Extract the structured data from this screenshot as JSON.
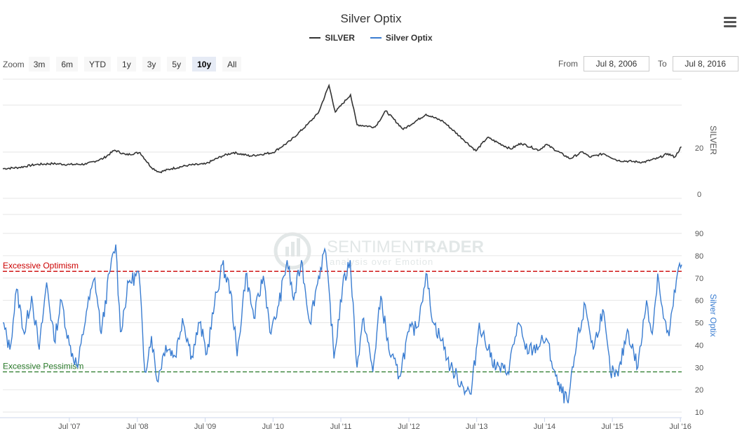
{
  "title": "Silver Optix",
  "legend": [
    {
      "name": "SILVER",
      "color": "#333333"
    },
    {
      "name": "Silver Optix",
      "color": "#3a7dd1"
    }
  ],
  "menu_icon": "hamburger-menu-icon",
  "zoom": {
    "label": "Zoom",
    "buttons": [
      "3m",
      "6m",
      "YTD",
      "1y",
      "3y",
      "5y",
      "10y",
      "All"
    ],
    "active": "10y"
  },
  "range": {
    "from_label": "From",
    "from_value": "Jul 8, 2006",
    "to_label": "To",
    "to_value": "Jul 8, 2016"
  },
  "watermark": {
    "brand_light": "SENTIMEN",
    "brand_bold": "TRADER",
    "tagline": "analysis over Emotion"
  },
  "chart_data": {
    "type": "line",
    "x_ticks": [
      "Jul '07",
      "Jul '08",
      "Jul '09",
      "Jul '10",
      "Jul '11",
      "Jul '12",
      "Jul '13",
      "Jul '14",
      "Jul '15",
      "Jul '16"
    ],
    "panels": [
      {
        "series": "SILVER",
        "color": "#333333",
        "yaxis_title": "SILVER",
        "ylim": [
          0,
          60
        ],
        "y_ticks": [
          "0",
          "20"
        ],
        "points": [
          [
            "2006-07-08",
            11.0
          ],
          [
            "2006-10-01",
            11.5
          ],
          [
            "2007-01-01",
            12.8
          ],
          [
            "2007-04-01",
            13.2
          ],
          [
            "2007-07-01",
            12.8
          ],
          [
            "2007-10-01",
            13.0
          ],
          [
            "2008-01-01",
            15.5
          ],
          [
            "2008-03-01",
            19.0
          ],
          [
            "2008-05-01",
            17.0
          ],
          [
            "2008-07-15",
            18.0
          ],
          [
            "2008-09-15",
            11.5
          ],
          [
            "2008-10-27",
            9.5
          ],
          [
            "2009-01-01",
            11.0
          ],
          [
            "2009-04-01",
            12.5
          ],
          [
            "2009-07-01",
            13.0
          ],
          [
            "2009-10-01",
            16.5
          ],
          [
            "2009-12-01",
            18.0
          ],
          [
            "2010-03-01",
            16.5
          ],
          [
            "2010-07-01",
            18.0
          ],
          [
            "2010-10-01",
            23.0
          ],
          [
            "2011-01-01",
            30.0
          ],
          [
            "2011-03-01",
            35.0
          ],
          [
            "2011-04-28",
            47.0
          ],
          [
            "2011-06-01",
            35.5
          ],
          [
            "2011-08-22",
            43.0
          ],
          [
            "2011-09-26",
            30.0
          ],
          [
            "2012-01-01",
            29.0
          ],
          [
            "2012-02-28",
            36.0
          ],
          [
            "2012-06-01",
            28.0
          ],
          [
            "2012-10-01",
            34.5
          ],
          [
            "2013-01-01",
            31.5
          ],
          [
            "2013-04-15",
            24.0
          ],
          [
            "2013-06-27",
            18.7
          ],
          [
            "2013-08-28",
            24.5
          ],
          [
            "2013-12-31",
            19.5
          ],
          [
            "2014-02-24",
            22.0
          ],
          [
            "2014-06-01",
            19.0
          ],
          [
            "2014-07-10",
            21.5
          ],
          [
            "2014-11-15",
            15.3
          ],
          [
            "2015-01-22",
            18.3
          ],
          [
            "2015-03-01",
            16.0
          ],
          [
            "2015-05-15",
            17.5
          ],
          [
            "2015-08-01",
            14.5
          ],
          [
            "2015-12-15",
            13.8
          ],
          [
            "2016-03-01",
            15.5
          ],
          [
            "2016-04-25",
            17.5
          ],
          [
            "2016-06-01",
            16.0
          ],
          [
            "2016-07-06",
            20.5
          ]
        ]
      },
      {
        "series": "Silver Optix",
        "color": "#3a7dd1",
        "yaxis_title": "Silver Optix",
        "ylim": [
          10,
          90
        ],
        "y_ticks": [
          "10",
          "20",
          "30",
          "40",
          "50",
          "60",
          "70",
          "80",
          "90"
        ],
        "points": [
          [
            "2006-07-08",
            50
          ],
          [
            "2006-08-15",
            38
          ],
          [
            "2006-09-20",
            65
          ],
          [
            "2006-11-01",
            45
          ],
          [
            "2006-12-10",
            62
          ],
          [
            "2007-01-20",
            38
          ],
          [
            "2007-03-01",
            68
          ],
          [
            "2007-04-10",
            42
          ],
          [
            "2007-05-20",
            60
          ],
          [
            "2007-07-01",
            40
          ],
          [
            "2007-08-15",
            30
          ],
          [
            "2007-10-01",
            55
          ],
          [
            "2007-11-15",
            70
          ],
          [
            "2007-12-20",
            45
          ],
          [
            "2008-02-01",
            72
          ],
          [
            "2008-03-07",
            85
          ],
          [
            "2008-04-01",
            46
          ],
          [
            "2008-05-15",
            68
          ],
          [
            "2008-07-10",
            72
          ],
          [
            "2008-08-10",
            28
          ],
          [
            "2008-09-15",
            44
          ],
          [
            "2008-10-15",
            24
          ],
          [
            "2008-12-01",
            40
          ],
          [
            "2009-01-20",
            35
          ],
          [
            "2009-03-01",
            52
          ],
          [
            "2009-04-20",
            35
          ],
          [
            "2009-06-01",
            50
          ],
          [
            "2009-07-10",
            36
          ],
          [
            "2009-08-20",
            58
          ],
          [
            "2009-10-01",
            76
          ],
          [
            "2009-11-15",
            64
          ],
          [
            "2009-12-20",
            35
          ],
          [
            "2010-02-05",
            72
          ],
          [
            "2010-03-20",
            52
          ],
          [
            "2010-05-10",
            71
          ],
          [
            "2010-06-20",
            45
          ],
          [
            "2010-08-01",
            58
          ],
          [
            "2010-09-15",
            78
          ],
          [
            "2010-10-20",
            60
          ],
          [
            "2010-12-01",
            78
          ],
          [
            "2011-01-15",
            50
          ],
          [
            "2011-02-20",
            66
          ],
          [
            "2011-04-05",
            83
          ],
          [
            "2011-05-05",
            58
          ],
          [
            "2011-05-25",
            34
          ],
          [
            "2011-07-10",
            66
          ],
          [
            "2011-08-20",
            78
          ],
          [
            "2011-09-26",
            30
          ],
          [
            "2011-11-01",
            52
          ],
          [
            "2011-12-20",
            28
          ],
          [
            "2012-02-01",
            62
          ],
          [
            "2012-03-15",
            38
          ],
          [
            "2012-05-10",
            26
          ],
          [
            "2012-07-01",
            46
          ],
          [
            "2012-08-15",
            48
          ],
          [
            "2012-10-01",
            72
          ],
          [
            "2012-11-10",
            50
          ],
          [
            "2012-12-25",
            42
          ],
          [
            "2013-02-10",
            30
          ],
          [
            "2013-04-15",
            22
          ],
          [
            "2013-06-01",
            18
          ],
          [
            "2013-07-15",
            50
          ],
          [
            "2013-09-01",
            38
          ],
          [
            "2013-10-15",
            30
          ],
          [
            "2013-12-15",
            28
          ],
          [
            "2014-02-10",
            50
          ],
          [
            "2014-03-20",
            38
          ],
          [
            "2014-05-01",
            38
          ],
          [
            "2014-07-10",
            43
          ],
          [
            "2014-09-10",
            22
          ],
          [
            "2014-11-05",
            14
          ],
          [
            "2014-12-20",
            40
          ],
          [
            "2015-02-05",
            58
          ],
          [
            "2015-03-20",
            38
          ],
          [
            "2015-05-10",
            56
          ],
          [
            "2015-06-20",
            28
          ],
          [
            "2015-08-01",
            26
          ],
          [
            "2015-09-20",
            47
          ],
          [
            "2015-11-15",
            30
          ],
          [
            "2016-01-01",
            60
          ],
          [
            "2016-02-01",
            45
          ],
          [
            "2016-03-01",
            72
          ],
          [
            "2016-04-01",
            52
          ],
          [
            "2016-05-01",
            44
          ],
          [
            "2016-06-15",
            72
          ],
          [
            "2016-07-08",
            76
          ]
        ],
        "bands": [
          {
            "label": "Excessive Optimism",
            "value": 73,
            "color": "#cc0000"
          },
          {
            "label": "Excessive Pessimism",
            "value": 28,
            "color": "#2a7a2a"
          }
        ]
      }
    ]
  }
}
